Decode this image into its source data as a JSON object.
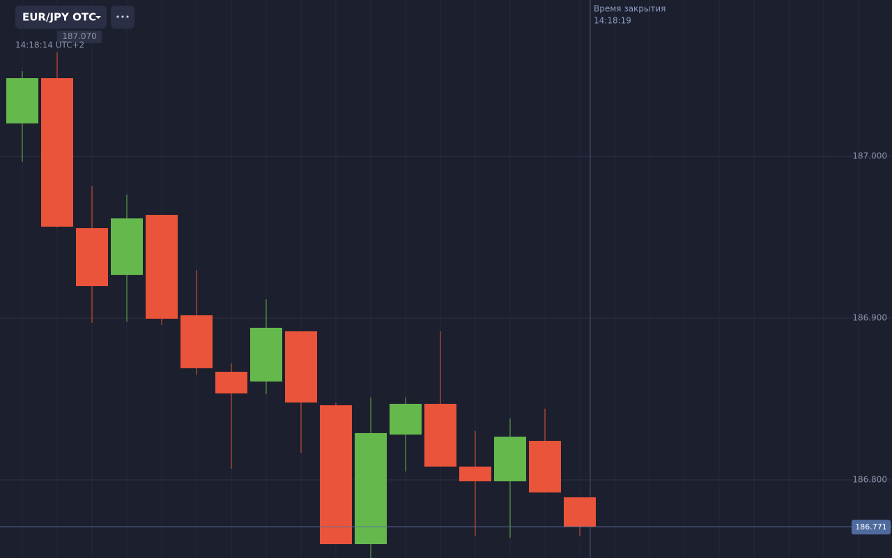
{
  "chart_data": {
    "type": "candlestick",
    "title": "EUR/JPY OTC",
    "time": "14:18:14 UTC+2",
    "close_time_title": "Время закрытия",
    "close_time": "14:18:19",
    "marker": {
      "value": 187.07,
      "label": "187.070"
    },
    "current_price": 186.771,
    "categories": [
      null,
      null,
      null,
      null,
      null,
      null,
      null,
      null,
      null,
      null,
      null,
      null,
      null,
      null,
      null,
      null,
      null
    ],
    "open": [
      187.0203,
      187.0483,
      186.9556,
      186.9267,
      186.9638,
      186.9017,
      186.8668,
      186.8608,
      186.8918,
      186.8461,
      186.7603,
      186.828,
      186.847,
      186.8082,
      186.7991,
      186.8241,
      186.7892
    ],
    "high": [
      187.0526,
      187.0642,
      186.9815,
      186.9763,
      186.9638,
      186.9297,
      186.872,
      186.9116,
      186.8918,
      186.8478,
      186.8509,
      186.8509,
      186.8918,
      186.8302,
      186.8379,
      186.844,
      186.7892
    ],
    "low": [
      186.9966,
      186.956,
      186.897,
      186.8978,
      186.8957,
      186.8651,
      186.8069,
      186.853,
      186.8168,
      186.7603,
      186.7517,
      186.8052,
      186.8082,
      186.7655,
      186.7642,
      186.7922,
      186.7655
    ],
    "close": [
      187.0483,
      186.9565,
      186.9198,
      186.9616,
      186.8996,
      186.869,
      186.8534,
      186.894,
      186.8478,
      186.7603,
      186.8289,
      186.847,
      186.8082,
      186.7991,
      186.8267,
      186.7922,
      186.771
    ],
    "up_color": "#65b84c",
    "down_color": "#e9543a",
    "ylim": [
      186.7517,
      187.0966
    ],
    "yticks": [
      {
        "value": 186.8,
        "label": "186.800"
      },
      {
        "value": 186.9,
        "label": "186.900"
      },
      {
        "value": 187.0,
        "label": "187.000"
      }
    ],
    "grid": true
  }
}
